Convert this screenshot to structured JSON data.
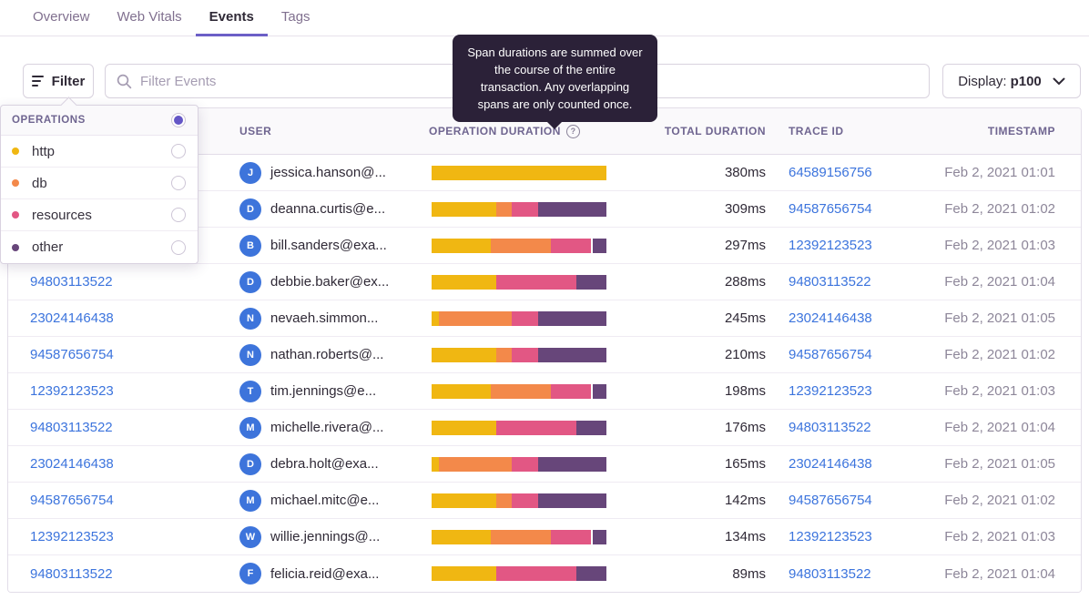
{
  "tabs": {
    "items": [
      {
        "label": "Overview",
        "active": false
      },
      {
        "label": "Web Vitals",
        "active": false
      },
      {
        "label": "Events",
        "active": true
      },
      {
        "label": "Tags",
        "active": false
      }
    ]
  },
  "toolbar": {
    "filter_label": "Filter",
    "search_placeholder": "Filter Events",
    "display_label": "Display:",
    "display_value": "p100"
  },
  "tooltip": {
    "text": "Span durations are summed over the course of the entire transaction. Any overlapping spans are only counted once."
  },
  "operations_dropdown": {
    "header": "OPERATIONS",
    "items": [
      {
        "label": "http",
        "color": "#f0b712"
      },
      {
        "label": "db",
        "color": "#f3894a"
      },
      {
        "label": "resources",
        "color": "#e25784"
      },
      {
        "label": "other",
        "color": "#67467a"
      }
    ]
  },
  "colors": {
    "accent": "#6c5fc7",
    "link": "#3c74dd",
    "http": "#f0b712",
    "db": "#f3894a",
    "resources": "#e25784",
    "other": "#67467a",
    "gap": "#ffffff"
  },
  "table": {
    "headers": {
      "id": "",
      "user": "USER",
      "operation_duration": "OPERATION DURATION",
      "total_duration": "TOTAL DURATION",
      "trace_id": "TRACE ID",
      "timestamp": "TIMESTAMP"
    },
    "rows": [
      {
        "id": "",
        "avatar": "J",
        "user": "jessica.hanson@...",
        "bar": [
          [
            "http",
            100
          ]
        ],
        "total": "380ms",
        "trace": "64589156756",
        "timestamp": "Feb 2, 2021 01:01"
      },
      {
        "id": "",
        "avatar": "D",
        "user": "deanna.curtis@e...",
        "bar": [
          [
            "http",
            37
          ],
          [
            "db",
            9
          ],
          [
            "resources",
            15
          ],
          [
            "other",
            39
          ]
        ],
        "total": "309ms",
        "trace": "94587656754",
        "timestamp": "Feb 2, 2021 01:02"
      },
      {
        "id": "",
        "avatar": "B",
        "user": "bill.sanders@exa...",
        "bar": [
          [
            "http",
            34
          ],
          [
            "db",
            34
          ],
          [
            "resources",
            23
          ],
          [
            "gap",
            1
          ],
          [
            "other",
            8
          ]
        ],
        "total": "297ms",
        "trace": "12392123523",
        "timestamp": "Feb 2, 2021 01:03"
      },
      {
        "id": "94803113522",
        "avatar": "D",
        "user": "debbie.baker@ex...",
        "bar": [
          [
            "http",
            37
          ],
          [
            "resources",
            46
          ],
          [
            "other",
            17
          ]
        ],
        "total": "288ms",
        "trace": "94803113522",
        "timestamp": "Feb 2, 2021 01:04"
      },
      {
        "id": "23024146438",
        "avatar": "N",
        "user": "nevaeh.simmon...",
        "bar": [
          [
            "http",
            4
          ],
          [
            "db",
            42
          ],
          [
            "resources",
            15
          ],
          [
            "other",
            39
          ]
        ],
        "total": "245ms",
        "trace": "23024146438",
        "timestamp": "Feb 2, 2021 01:05"
      },
      {
        "id": "94587656754",
        "avatar": "N",
        "user": "nathan.roberts@...",
        "bar": [
          [
            "http",
            37
          ],
          [
            "db",
            9
          ],
          [
            "resources",
            15
          ],
          [
            "other",
            39
          ]
        ],
        "total": "210ms",
        "trace": "94587656754",
        "timestamp": "Feb 2, 2021 01:02"
      },
      {
        "id": "12392123523",
        "avatar": "T",
        "user": "tim.jennings@e...",
        "bar": [
          [
            "http",
            34
          ],
          [
            "db",
            34
          ],
          [
            "resources",
            23
          ],
          [
            "gap",
            1
          ],
          [
            "other",
            8
          ]
        ],
        "total": "198ms",
        "trace": "12392123523",
        "timestamp": "Feb 2, 2021 01:03"
      },
      {
        "id": "94803113522",
        "avatar": "M",
        "user": "michelle.rivera@...",
        "bar": [
          [
            "http",
            37
          ],
          [
            "resources",
            46
          ],
          [
            "other",
            17
          ]
        ],
        "total": "176ms",
        "trace": "94803113522",
        "timestamp": "Feb 2, 2021 01:04"
      },
      {
        "id": "23024146438",
        "avatar": "D",
        "user": "debra.holt@exa...",
        "bar": [
          [
            "http",
            4
          ],
          [
            "db",
            42
          ],
          [
            "resources",
            15
          ],
          [
            "other",
            39
          ]
        ],
        "total": "165ms",
        "trace": "23024146438",
        "timestamp": "Feb 2, 2021 01:05"
      },
      {
        "id": "94587656754",
        "avatar": "M",
        "user": "michael.mitc@e...",
        "bar": [
          [
            "http",
            37
          ],
          [
            "db",
            9
          ],
          [
            "resources",
            15
          ],
          [
            "other",
            39
          ]
        ],
        "total": "142ms",
        "trace": "94587656754",
        "timestamp": "Feb 2, 2021 01:02"
      },
      {
        "id": "12392123523",
        "avatar": "W",
        "user": "willie.jennings@...",
        "bar": [
          [
            "http",
            34
          ],
          [
            "db",
            34
          ],
          [
            "resources",
            23
          ],
          [
            "gap",
            1
          ],
          [
            "other",
            8
          ]
        ],
        "total": "134ms",
        "trace": "12392123523",
        "timestamp": "Feb 2, 2021 01:03"
      },
      {
        "id": "94803113522",
        "avatar": "F",
        "user": "felicia.reid@exa...",
        "bar": [
          [
            "http",
            37
          ],
          [
            "resources",
            46
          ],
          [
            "other",
            17
          ]
        ],
        "total": "89ms",
        "trace": "94803113522",
        "timestamp": "Feb 2, 2021 01:04"
      }
    ]
  }
}
